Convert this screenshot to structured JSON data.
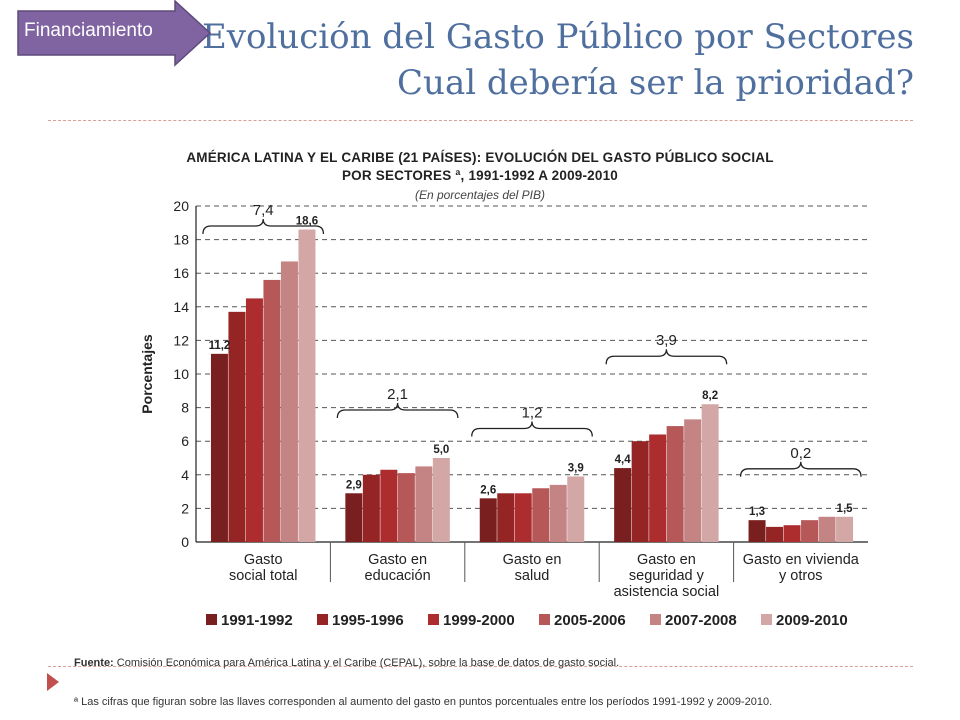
{
  "badge": {
    "label": "Financiamiento",
    "color": "#8064a2"
  },
  "slide": {
    "title_line1": "Evolución del Gasto Público por Sectores",
    "title_line2": "Cual debería ser la prioridad?"
  },
  "footer": {
    "source_label": "Fuente:",
    "source_text": " Comisión Económica para América Latina y el Caribe (CEPAL), sobre la base de datos de gasto social.",
    "note": "ª Las cifras que figuran sobre las llaves corresponden al aumento del gasto en puntos porcentuales entre los períodos 1991-1992 y 2009-2010."
  },
  "chart_data": {
    "type": "bar",
    "title_line1": "AMÉRICA LATINA Y EL CARIBE (21 PAÍSES): EVOLUCIÓN DEL GASTO PÚBLICO SOCIAL",
    "title_line2": "POR SECTORES ª, 1991-1992 A 2009-2010",
    "subtitle": "(En porcentajes del PIB)",
    "ylabel": "Porcentajes",
    "ylim": [
      0,
      20
    ],
    "yticks": [
      0,
      2,
      4,
      6,
      8,
      10,
      12,
      14,
      16,
      18,
      20
    ],
    "grid": true,
    "legend_position": "bottom",
    "categories": [
      [
        "Gasto",
        "social total"
      ],
      [
        "Gasto en",
        "educación"
      ],
      [
        "Gasto en",
        "salud"
      ],
      [
        "Gasto en",
        "seguridad y",
        "asistencia social"
      ],
      [
        "Gasto en vivienda",
        "y otros"
      ]
    ],
    "series": [
      {
        "name": "1991-1992",
        "color": "#7a1f1f",
        "values": [
          11.2,
          2.9,
          2.6,
          4.4,
          1.3
        ]
      },
      {
        "name": "1995-1996",
        "color": "#952424",
        "values": [
          13.7,
          4.0,
          2.9,
          6.0,
          0.9
        ]
      },
      {
        "name": "1999-2000",
        "color": "#ad2d2f",
        "values": [
          14.5,
          4.3,
          2.9,
          6.4,
          1.0
        ]
      },
      {
        "name": "2005-2006",
        "color": "#b75858",
        "values": [
          15.6,
          4.1,
          3.2,
          6.9,
          1.3
        ]
      },
      {
        "name": "2007-2008",
        "color": "#c58484",
        "values": [
          16.7,
          4.5,
          3.4,
          7.3,
          1.5
        ]
      },
      {
        "name": "2009-2010",
        "color": "#d4a7a7",
        "values": [
          18.6,
          5.0,
          3.9,
          8.2,
          1.5
        ]
      }
    ],
    "data_labels": [
      {
        "category": 0,
        "series": 0,
        "text": "11,2"
      },
      {
        "category": 0,
        "series": 5,
        "text": "18,6"
      },
      {
        "category": 1,
        "series": 0,
        "text": "2,9"
      },
      {
        "category": 1,
        "series": 5,
        "text": "5,0"
      },
      {
        "category": 2,
        "series": 0,
        "text": "2,6"
      },
      {
        "category": 2,
        "series": 5,
        "text": "3,9"
      },
      {
        "category": 3,
        "series": 0,
        "text": "4,4"
      },
      {
        "category": 3,
        "series": 5,
        "text": "8,2"
      },
      {
        "category": 4,
        "series": 0,
        "text": "1,3"
      },
      {
        "category": 4,
        "series": 5,
        "text": "1,5"
      }
    ],
    "brace_labels": [
      {
        "category": 0,
        "text": "7,4"
      },
      {
        "category": 1,
        "text": "2,1"
      },
      {
        "category": 2,
        "text": "1,2"
      },
      {
        "category": 3,
        "text": "3,9"
      },
      {
        "category": 4,
        "text": "0,2"
      }
    ]
  }
}
